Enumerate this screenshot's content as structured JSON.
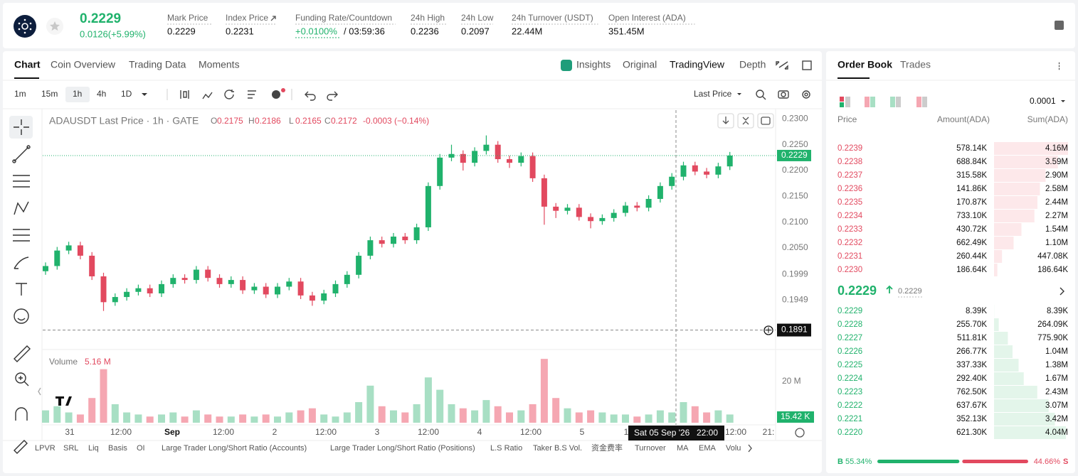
{
  "header": {
    "price": "0.2229",
    "change": "0.0126(+5.99%)",
    "stats": [
      {
        "label": "Mark Price",
        "value": "0.2229"
      },
      {
        "label": "Index Price",
        "value": "0.2231"
      },
      {
        "label": "Funding Rate/Countdown",
        "value": "+0.0100%",
        "countdown": "/ 03:59:36"
      },
      {
        "label": "24h High",
        "value": "0.2236"
      },
      {
        "label": "24h Low",
        "value": "0.2097"
      },
      {
        "label": "24h Turnover (USDT)",
        "value": "22.44M"
      },
      {
        "label": "Open Interest (ADA)",
        "value": "351.45M"
      }
    ]
  },
  "chart_tabs": [
    "Chart",
    "Coin Overview",
    "Trading Data",
    "Moments"
  ],
  "view_tabs": [
    "Insights",
    "Original",
    "TradingView",
    "Depth"
  ],
  "intervals": [
    "1m",
    "15m",
    "1h",
    "4h",
    "1D"
  ],
  "price_type": "Last Price",
  "legend": {
    "symbol": "ADAUSDT Last Price · 1h · GATE",
    "ohlc": [
      {
        "k": "O",
        "v": "0.2175"
      },
      {
        "k": "H",
        "v": "0.2186"
      },
      {
        "k": "L",
        "v": "0.2165"
      },
      {
        "k": "C",
        "v": "0.2172"
      }
    ],
    "change": "-0.0003 (−0.14%)"
  },
  "chart": {
    "ylim": [
      0.1856,
      0.2317
    ],
    "yticks": [
      {
        "value": 0.23,
        "label": "0.2300"
      },
      {
        "value": 0.225,
        "label": "0.2250"
      },
      {
        "value": 0.22,
        "label": "0.2200"
      },
      {
        "value": 0.215,
        "label": "0.2150"
      },
      {
        "value": 0.21,
        "label": "0.2100"
      },
      {
        "value": 0.205,
        "label": "0.2050"
      },
      {
        "value": 0.1999,
        "label": "0.1999"
      },
      {
        "value": 0.1949,
        "label": "0.1949"
      }
    ],
    "open": [
      0.2005,
      0.2015,
      0.2045,
      0.2055,
      0.2035,
      0.1995,
      0.1945,
      0.1955,
      0.1965,
      0.1972,
      0.1962,
      0.198,
      0.1992,
      0.1988,
      0.2008,
      0.1992,
      0.198,
      0.1988,
      0.1968,
      0.1975,
      0.196,
      0.1975,
      0.1985,
      0.1958,
      0.1948,
      0.1962,
      0.198,
      0.1998,
      0.2035,
      0.2065,
      0.2058,
      0.2072,
      0.2065,
      0.209,
      0.217,
      0.2225,
      0.2232,
      0.2215,
      0.2238,
      0.225,
      0.2222,
      0.2215,
      0.2228,
      0.2185,
      0.213,
      0.2122,
      0.2128,
      0.211,
      0.2102,
      0.2108,
      0.2118,
      0.2132,
      0.2128,
      0.2145,
      0.217,
      0.2188,
      0.221,
      0.2198,
      0.2192,
      0.2208
    ],
    "high": [
      0.2022,
      0.2052,
      0.2062,
      0.2062,
      0.2042,
      0.2002,
      0.1962,
      0.1972,
      0.1979,
      0.1979,
      0.1987,
      0.1999,
      0.1999,
      0.2015,
      0.2015,
      0.1999,
      0.1995,
      0.1995,
      0.1982,
      0.1982,
      0.1982,
      0.1992,
      0.1992,
      0.1965,
      0.1969,
      0.1987,
      0.2005,
      0.2042,
      0.2072,
      0.2072,
      0.2079,
      0.2079,
      0.2097,
      0.2177,
      0.2232,
      0.225,
      0.2239,
      0.2245,
      0.2268,
      0.2257,
      0.2229,
      0.2235,
      0.2235,
      0.2192,
      0.2137,
      0.2135,
      0.2135,
      0.2117,
      0.2115,
      0.2125,
      0.2139,
      0.2139,
      0.2152,
      0.2177,
      0.2195,
      0.2217,
      0.2217,
      0.2205,
      0.2215,
      0.2236
    ],
    "low": [
      0.1998,
      0.2008,
      0.2038,
      0.2028,
      0.1988,
      0.1928,
      0.1938,
      0.1948,
      0.1958,
      0.1955,
      0.1955,
      0.1973,
      0.1981,
      0.1981,
      0.1985,
      0.1973,
      0.1973,
      0.1961,
      0.1961,
      0.1953,
      0.1953,
      0.1968,
      0.1951,
      0.1938,
      0.1941,
      0.1955,
      0.1973,
      0.1991,
      0.2028,
      0.2051,
      0.2051,
      0.2058,
      0.2058,
      0.2083,
      0.2163,
      0.2218,
      0.22,
      0.2208,
      0.2231,
      0.2215,
      0.2205,
      0.2208,
      0.2178,
      0.2095,
      0.2108,
      0.2115,
      0.2103,
      0.2088,
      0.2095,
      0.2101,
      0.2111,
      0.2121,
      0.2121,
      0.2138,
      0.2163,
      0.2181,
      0.2191,
      0.2185,
      0.2185,
      0.2201
    ],
    "close": [
      0.2015,
      0.2045,
      0.2055,
      0.2035,
      0.1995,
      0.1945,
      0.1955,
      0.1965,
      0.1972,
      0.1962,
      0.198,
      0.1992,
      0.1988,
      0.2008,
      0.1992,
      0.198,
      0.1988,
      0.1968,
      0.1975,
      0.196,
      0.1975,
      0.1985,
      0.1958,
      0.1948,
      0.1962,
      0.198,
      0.1998,
      0.2035,
      0.2065,
      0.2058,
      0.2072,
      0.2065,
      0.209,
      0.217,
      0.2225,
      0.2232,
      0.2215,
      0.2238,
      0.225,
      0.2222,
      0.2215,
      0.2228,
      0.2185,
      0.213,
      0.2122,
      0.2128,
      0.211,
      0.2102,
      0.2108,
      0.2118,
      0.2132,
      0.2128,
      0.2145,
      0.217,
      0.2188,
      0.221,
      0.2198,
      0.2192,
      0.2208,
      0.2229
    ],
    "volume": [
      6,
      8,
      5,
      4,
      12,
      26,
      9,
      5,
      4,
      3,
      4,
      5,
      3,
      6,
      4,
      3,
      3,
      4,
      3,
      4,
      3,
      5,
      6,
      7,
      4,
      3,
      5,
      10,
      18,
      8,
      6,
      5,
      9,
      22,
      16,
      9,
      7,
      6,
      11,
      8,
      5,
      6,
      9,
      31,
      12,
      7,
      5,
      6,
      5,
      4,
      4,
      3,
      4,
      6,
      5,
      10,
      8,
      5,
      6,
      4
    ],
    "volume_ylim": [
      0,
      34.5
    ],
    "volume_ticks": [
      {
        "value": 20,
        "label": "20 M"
      }
    ],
    "last_price": {
      "value": 0.2229,
      "label": "0.2229"
    },
    "crosshair_price": {
      "value": 0.1891,
      "label": "0.1891"
    },
    "crosshair_date": "Sat 05 Sep '26",
    "crosshair_time": "22:00",
    "time_labels": [
      "31",
      "12:00",
      "Sep",
      "12:00",
      "2",
      "12:00",
      "3",
      "12:00",
      "4",
      "12:00",
      "5",
      "1",
      "12:00",
      "21:"
    ]
  },
  "volume": {
    "label": "Volume",
    "value": "5.16 M",
    "last": "15.42 K"
  },
  "indicators": [
    "LPVR",
    "SRL",
    "Liq",
    "Basis",
    "OI",
    "Large Trader Long/Short Ratio (Accounts)",
    "Large Trader Long/Short Ratio (Positions)",
    "L.S Ratio",
    "Taker B.S Vol.",
    "资金费率",
    "Turnover",
    "MA",
    "EMA",
    "Volu"
  ],
  "order_book": {
    "tabs": [
      "Order Book",
      "Trades"
    ],
    "precision": "0.0001",
    "headers": [
      "Price",
      "Amount(ADA)",
      "Sum(ADA)"
    ],
    "asks": [
      {
        "price": "0.2239",
        "amount": "578.14K",
        "sum": {
          "value": 4160000,
          "label": "4.16M"
        }
      },
      {
        "price": "0.2238",
        "amount": "688.84K",
        "sum": {
          "value": 3590000,
          "label": "3.59M"
        }
      },
      {
        "price": "0.2237",
        "amount": "315.58K",
        "sum": {
          "value": 2900000,
          "label": "2.90M"
        }
      },
      {
        "price": "0.2236",
        "amount": "141.86K",
        "sum": {
          "value": 2580000,
          "label": "2.58M"
        }
      },
      {
        "price": "0.2235",
        "amount": "170.87K",
        "sum": {
          "value": 2440000,
          "label": "2.44M"
        }
      },
      {
        "price": "0.2234",
        "amount": "733.10K",
        "sum": {
          "value": 2270000,
          "label": "2.27M"
        }
      },
      {
        "price": "0.2233",
        "amount": "430.72K",
        "sum": {
          "value": 1540000,
          "label": "1.54M"
        }
      },
      {
        "price": "0.2232",
        "amount": "662.49K",
        "sum": {
          "value": 1100000,
          "label": "1.10M"
        }
      },
      {
        "price": "0.2231",
        "amount": "260.44K",
        "sum": {
          "value": 447080,
          "label": "447.08K"
        }
      },
      {
        "price": "0.2230",
        "amount": "186.64K",
        "sum": {
          "value": 186640,
          "label": "186.64K"
        }
      }
    ],
    "mid": "0.2229",
    "mid_mark": "0.2229",
    "bids": [
      {
        "price": "0.2229",
        "amount": "8.39K",
        "sum": {
          "value": 8390,
          "label": "8.39K"
        }
      },
      {
        "price": "0.2228",
        "amount": "255.70K",
        "sum": {
          "value": 264090,
          "label": "264.09K"
        }
      },
      {
        "price": "0.2227",
        "amount": "511.81K",
        "sum": {
          "value": 775900,
          "label": "775.90K"
        }
      },
      {
        "price": "0.2226",
        "amount": "266.77K",
        "sum": {
          "value": 1040000,
          "label": "1.04M"
        }
      },
      {
        "price": "0.2225",
        "amount": "337.33K",
        "sum": {
          "value": 1380000,
          "label": "1.38M"
        }
      },
      {
        "price": "0.2224",
        "amount": "292.40K",
        "sum": {
          "value": 1670000,
          "label": "1.67M"
        }
      },
      {
        "price": "0.2223",
        "amount": "762.50K",
        "sum": {
          "value": 2430000,
          "label": "2.43M"
        }
      },
      {
        "price": "0.2222",
        "amount": "637.67K",
        "sum": {
          "value": 3070000,
          "label": "3.07M"
        }
      },
      {
        "price": "0.2221",
        "amount": "352.13K",
        "sum": {
          "value": 3420000,
          "label": "3.42M"
        }
      },
      {
        "price": "0.2220",
        "amount": "621.30K",
        "sum": {
          "value": 4040000,
          "label": "4.04M"
        }
      }
    ],
    "buy_tag": "B",
    "sell_tag": "S",
    "buy": {
      "value": 55.34,
      "label": "55.34%"
    },
    "sell": {
      "value": 44.66,
      "label": "44.66%"
    }
  }
}
